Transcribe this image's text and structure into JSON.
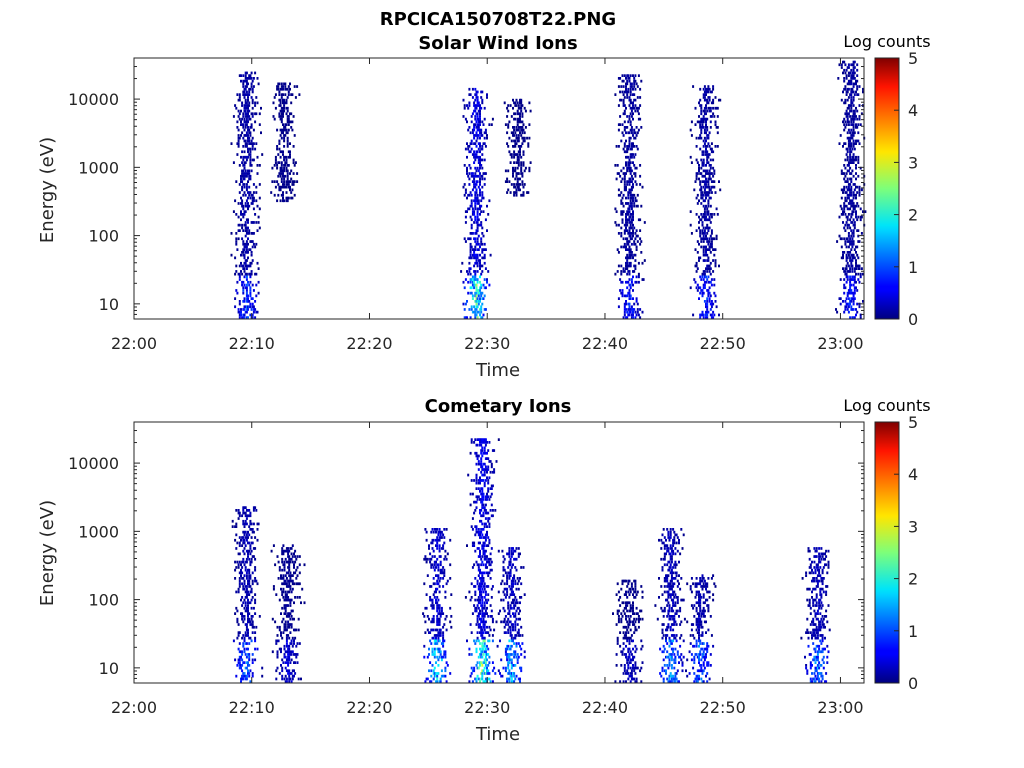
{
  "figure_title": "RPCICA150708T22.PNG",
  "chart_data": [
    {
      "type": "heatmap",
      "title": "Solar Wind Ions",
      "xlabel": "Time",
      "ylabel": "Energy (eV)",
      "x_ticks": [
        "22:00",
        "22:10",
        "22:20",
        "22:30",
        "22:40",
        "22:50",
        "23:00"
      ],
      "xlim": [
        "22:00",
        "23:02"
      ],
      "y_scale": "log",
      "y_ticks": [
        10,
        100,
        1000,
        10000
      ],
      "y_tick_labels": [
        "10",
        "100",
        "1000",
        "10000"
      ],
      "ylim": [
        6,
        40000
      ],
      "colorbar": {
        "label": "Log counts",
        "range": [
          0,
          5
        ],
        "ticks": [
          "0",
          "1",
          "2",
          "3",
          "4",
          "5"
        ]
      },
      "bursts": [
        {
          "time": "22:09:30",
          "emin": 6,
          "emax": 25000,
          "peak_level": 1.2
        },
        {
          "time": "22:12:40",
          "emin": 300,
          "emax": 16000,
          "peak_level": 0.4
        },
        {
          "time": "22:29:00",
          "emin": 6,
          "emax": 14000,
          "peak_level": 2.8
        },
        {
          "time": "22:32:30",
          "emin": 350,
          "emax": 10000,
          "peak_level": 0.4
        },
        {
          "time": "22:42:00",
          "emin": 6,
          "emax": 22000,
          "peak_level": 1.0
        },
        {
          "time": "22:48:30",
          "emin": 6,
          "emax": 15000,
          "peak_level": 1.1
        },
        {
          "time": "23:00:50",
          "emin": 6,
          "emax": 35000,
          "peak_level": 1.0
        }
      ]
    },
    {
      "type": "heatmap",
      "title": "Cometary Ions",
      "xlabel": "Time",
      "ylabel": "Energy (eV)",
      "x_ticks": [
        "22:00",
        "22:10",
        "22:20",
        "22:30",
        "22:40",
        "22:50",
        "23:00"
      ],
      "xlim": [
        "22:00",
        "23:02"
      ],
      "y_scale": "log",
      "y_ticks": [
        10,
        100,
        1000,
        10000
      ],
      "y_tick_labels": [
        "10",
        "100",
        "1000",
        "10000"
      ],
      "ylim": [
        6,
        40000
      ],
      "colorbar": {
        "label": "Log counts",
        "range": [
          0,
          5
        ],
        "ticks": [
          "0",
          "1",
          "2",
          "3",
          "4",
          "5"
        ]
      },
      "bursts": [
        {
          "time": "22:09:30",
          "emin": 6,
          "emax": 2200,
          "peak_level": 1.5
        },
        {
          "time": "22:13:00",
          "emin": 6,
          "emax": 600,
          "peak_level": 0.6
        },
        {
          "time": "22:25:40",
          "emin": 6,
          "emax": 1100,
          "peak_level": 2.3
        },
        {
          "time": "22:29:30",
          "emin": 6,
          "emax": 22000,
          "peak_level": 3.0
        },
        {
          "time": "22:32:00",
          "emin": 6,
          "emax": 550,
          "peak_level": 2.0
        },
        {
          "time": "22:42:00",
          "emin": 6,
          "emax": 180,
          "peak_level": 0.5
        },
        {
          "time": "22:45:30",
          "emin": 6,
          "emax": 1100,
          "peak_level": 1.8
        },
        {
          "time": "22:48:00",
          "emin": 6,
          "emax": 220,
          "peak_level": 1.5
        },
        {
          "time": "22:58:00",
          "emin": 6,
          "emax": 550,
          "peak_level": 1.7
        }
      ]
    }
  ]
}
